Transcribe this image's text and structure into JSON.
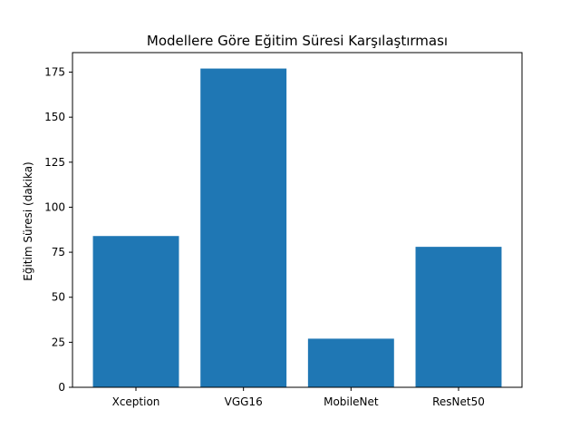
{
  "chart_data": {
    "type": "bar",
    "title": "Modellere Göre Eğitim Süresi Karşılaştırması",
    "xlabel": "",
    "ylabel": "Eğitim Süresi (dakika)",
    "categories": [
      "Xception",
      "VGG16",
      "MobileNet",
      "ResNet50"
    ],
    "values": [
      84,
      177,
      27,
      78
    ],
    "ylim": [
      0,
      185.85
    ],
    "yticks": [
      0,
      25,
      50,
      75,
      100,
      125,
      150,
      175
    ],
    "grid": false,
    "legend": "none",
    "bar_color": "#1f77b4"
  }
}
